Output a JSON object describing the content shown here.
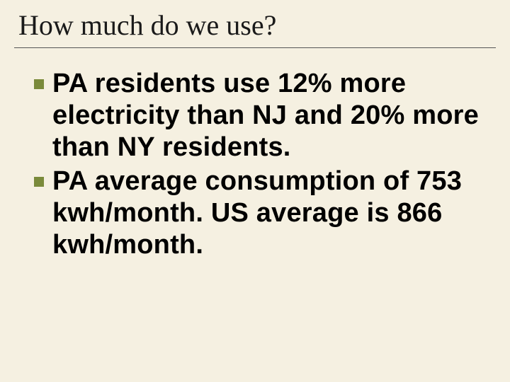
{
  "slide": {
    "title": "How much do we use?",
    "bullets": [
      {
        "text": "PA residents use 12% more electricity than NJ and 20% more than NY residents."
      },
      {
        "text": "PA average consumption of 753 kwh/month.   US average is 866 kwh/month."
      }
    ],
    "style": {
      "background_color": "#f5f0e1",
      "title_font_family": "Georgia, 'Times New Roman', serif",
      "title_font_size": 40,
      "title_color": "#1a1a1a",
      "title_underline_color": "#555555",
      "bullet_marker_color": "#7a8a3a",
      "bullet_marker_size": 14,
      "body_font_family": "Arial, Helvetica, sans-serif",
      "body_font_size": 38,
      "body_font_weight": "bold",
      "body_color": "#000000",
      "body_line_height": 1.18
    }
  }
}
